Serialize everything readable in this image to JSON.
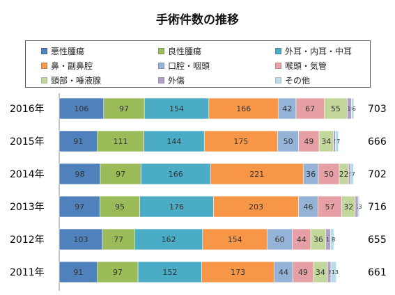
{
  "chart_data": {
    "type": "bar",
    "orientation": "horizontal",
    "stacked": true,
    "title": "手術件数の推移",
    "categories": [
      "2016年",
      "2015年",
      "2014年",
      "2013年",
      "2012年",
      "2011年"
    ],
    "totals": [
      703,
      666,
      702,
      716,
      655,
      661
    ],
    "series": [
      {
        "name": "悪性腫瘍",
        "color": "#4f81bd",
        "values": [
          106,
          91,
          98,
          97,
          103,
          91
        ]
      },
      {
        "name": "良性腫瘍",
        "color": "#9bbb59",
        "values": [
          97,
          111,
          97,
          95,
          77,
          97
        ]
      },
      {
        "name": "外耳・内耳・中耳",
        "color": "#4bacc6",
        "values": [
          154,
          144,
          166,
          176,
          162,
          152
        ]
      },
      {
        "name": "鼻・副鼻腔",
        "color": "#f79646",
        "values": [
          166,
          175,
          221,
          203,
          154,
          173
        ]
      },
      {
        "name": "口腔・咽頭",
        "color": "#95b3d7",
        "values": [
          42,
          50,
          36,
          46,
          60,
          44
        ]
      },
      {
        "name": "喉頭・気管",
        "color": "#e6a0a5",
        "values": [
          67,
          49,
          50,
          57,
          44,
          49
        ]
      },
      {
        "name": "頸部・唾液腺",
        "color": "#c3d69b",
        "values": [
          55,
          34,
          22,
          32,
          36,
          34
        ]
      },
      {
        "name": "外傷",
        "color": "#b2a1c7",
        "values": [
          10,
          5,
          5,
          7,
          11,
          8
        ]
      },
      {
        "name": "その他",
        "color": "#b7dee8",
        "values": [
          6,
          7,
          7,
          3,
          8,
          13
        ]
      }
    ],
    "legend_position": "top",
    "grid": false
  }
}
